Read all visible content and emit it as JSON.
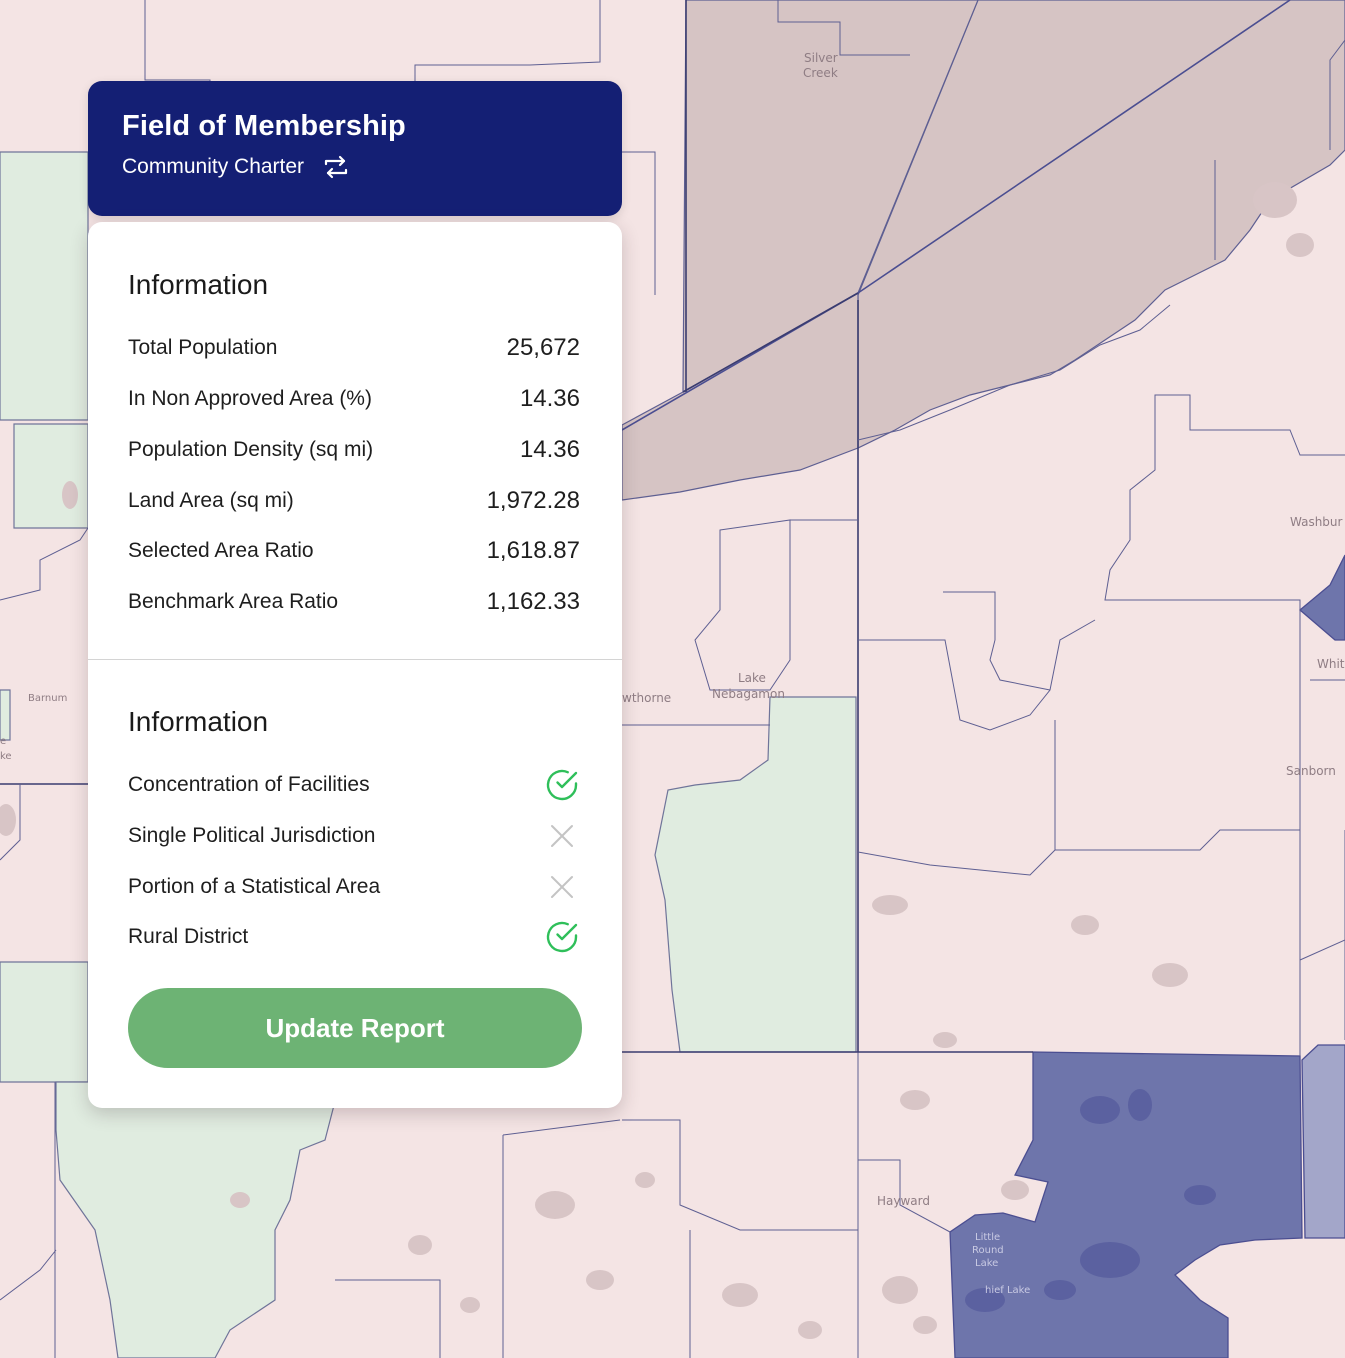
{
  "header": {
    "title": "Field of Membership",
    "subtitle": "Community Charter",
    "swap_icon": "swap-arrows-icon",
    "background_color": "#141f74"
  },
  "info_section": {
    "title": "Information",
    "rows": [
      {
        "label": "Total Population",
        "value": "25,672"
      },
      {
        "label": "In Non Approved Area (%)",
        "value": "14.36"
      },
      {
        "label": "Population Density (sq mi)",
        "value": "14.36"
      },
      {
        "label": "Land Area (sq mi)",
        "value": "1,972.28"
      },
      {
        "label": "Selected Area Ratio",
        "value": "1,618.87"
      },
      {
        "label": "Benchmark Area Ratio",
        "value": "1,162.33"
      }
    ]
  },
  "criteria_section": {
    "title": "Information",
    "items": [
      {
        "label": "Concentration of Facilities",
        "status": "met",
        "icon": "check-circle-icon"
      },
      {
        "label": "Single Political Jurisdiction",
        "status": "not-met",
        "icon": "x-icon"
      },
      {
        "label": "Portion of a Statistical Area",
        "status": "not-met",
        "icon": "x-icon"
      },
      {
        "label": "Rural District",
        "status": "met",
        "icon": "check-circle-icon"
      }
    ]
  },
  "update_button": {
    "label": "Update Report",
    "color": "#6db374"
  },
  "map": {
    "place_labels": {
      "silver": "Silver",
      "creek": "Creek",
      "washburn": "Washbur",
      "white": "Whit",
      "sanborn": "Sanborn",
      "lake": "Lake",
      "nebagamon": "Nebagamon",
      "hawthorne": "wthorne",
      "barnum": "Barnum",
      "hayward": "Hayward",
      "little": "Little",
      "round": "Round",
      "lake2": "Lake",
      "chief_lake": "hief Lake",
      "edge_1": "e",
      "edge_2": "ke"
    },
    "colors": {
      "base": "#f4e4e4",
      "green": "#e0ece0",
      "taupe": "#d6c4c4",
      "selected": "#6e75ab",
      "selected_light": "#a3a6c9",
      "boundary": "#5e5f92"
    }
  }
}
